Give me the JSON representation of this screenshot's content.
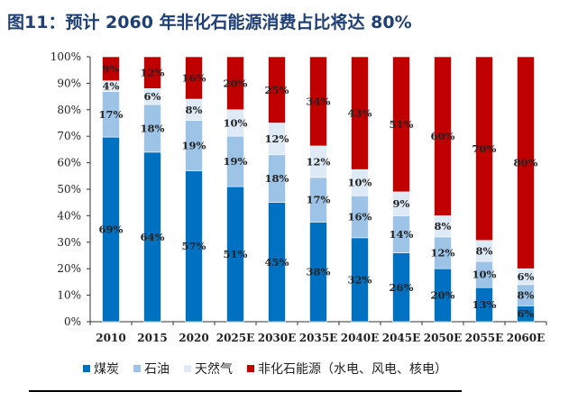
{
  "title": "图11：预计 2060 年非化石能源消费占比将达 80%",
  "chart_data": {
    "type": "bar",
    "stacked": true,
    "categories": [
      "2010",
      "2015",
      "2020",
      "2025E",
      "2030E",
      "2035E",
      "2040E",
      "2045E",
      "2050E",
      "2055E",
      "2060E"
    ],
    "series": [
      {
        "name": "煤炭",
        "color": "#0070c0",
        "values": [
          69,
          64,
          57,
          51,
          45,
          38,
          32,
          26,
          20,
          13,
          6
        ]
      },
      {
        "name": "石油",
        "color": "#9dc3e6",
        "values": [
          17,
          18,
          19,
          19,
          18,
          17,
          16,
          14,
          12,
          10,
          8
        ]
      },
      {
        "name": "天然气",
        "color": "#deebf7",
        "values": [
          4,
          6,
          8,
          10,
          12,
          12,
          10,
          9,
          8,
          8,
          6
        ]
      },
      {
        "name": "非化石能源（水电、风电、核电）",
        "color": "#c00000",
        "values": [
          9,
          12,
          16,
          20,
          25,
          34,
          43,
          51,
          60,
          70,
          80
        ]
      }
    ],
    "ylim": [
      0,
      100
    ],
    "yticks": [
      "0%",
      "10%",
      "20%",
      "30%",
      "40%",
      "50%",
      "60%",
      "70%",
      "80%",
      "90%",
      "100%"
    ],
    "legend_position": "bottom",
    "grid": false
  }
}
